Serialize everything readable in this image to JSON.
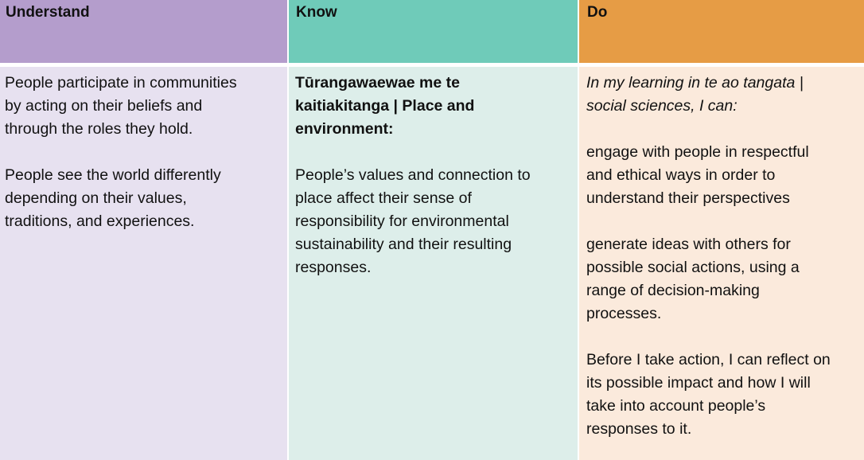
{
  "headers": {
    "understand": "Understand",
    "know": "Know",
    "do": "Do"
  },
  "colors": {
    "understand_header": "#b49dcc",
    "know_header": "#6fcbb9",
    "do_header": "#e69c45",
    "understand_body": "#e7e1f0",
    "know_body": "#ddeeea",
    "do_body": "#fbeadc"
  },
  "understand": {
    "para1": "People participate in communities\nby acting on their beliefs and\nthrough the roles they hold.",
    "para2": "People see the world differently\ndepending on their values,\ntraditions, and experiences."
  },
  "know": {
    "heading": "Tūrangawaewae me te\nkaitiakitanga | Place and\nenvironment:",
    "para1": "People’s values and connection to\nplace affect their sense of\nresponsibility for environmental\nsustainability and their resulting\nresponses."
  },
  "do": {
    "intro": "In my learning in te ao tangata |\nsocial sciences, I can:",
    "item1": "engage with people in respectful\nand ethical ways in order to\nunderstand their perspectives",
    "item2": "generate ideas with others for\npossible social actions, using a\nrange of decision-making\nprocesses.",
    "item3": "Before I take action, I can reflect on\nits possible impact and how I will\ntake into account people’s\nresponses to it."
  }
}
